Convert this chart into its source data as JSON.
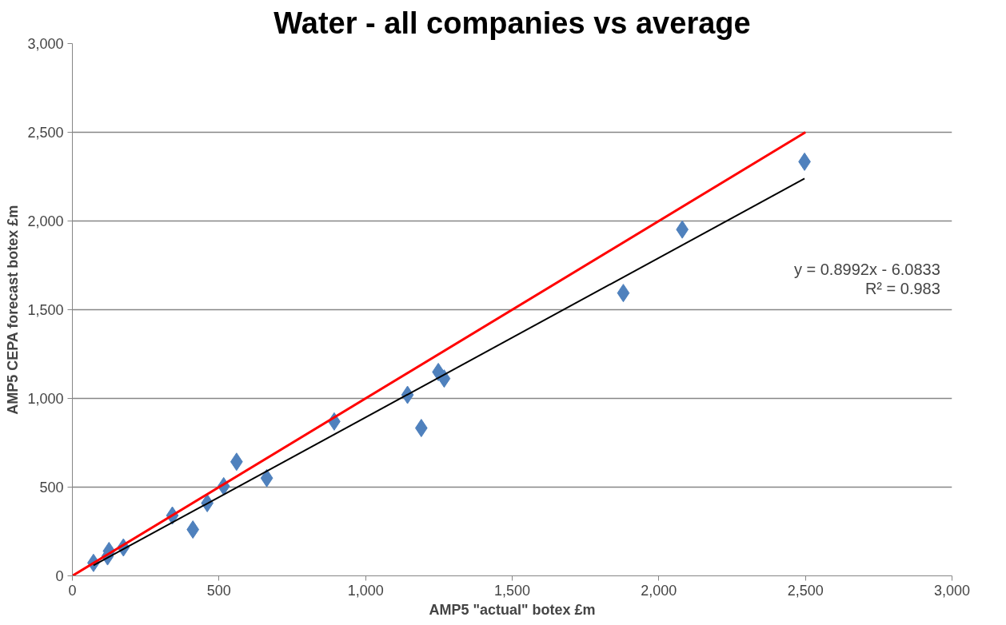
{
  "chart_data": {
    "type": "scatter",
    "title": "Water - all companies vs average",
    "xlabel": "AMP5 \"actual\" botex £m",
    "ylabel": "AMP5 CEPA forecast botex £m",
    "xlim": [
      0,
      3000
    ],
    "ylim": [
      0,
      3000
    ],
    "xticks": [
      {
        "value": 0,
        "label": "0"
      },
      {
        "value": 500,
        "label": "500"
      },
      {
        "value": 1000,
        "label": "1,000"
      },
      {
        "value": 1500,
        "label": "1,500"
      },
      {
        "value": 2000,
        "label": "2,000"
      },
      {
        "value": 2500,
        "label": "2,500"
      },
      {
        "value": 3000,
        "label": "3,000"
      }
    ],
    "yticks": [
      {
        "value": 0,
        "label": "0"
      },
      {
        "value": 500,
        "label": "500"
      },
      {
        "value": 1000,
        "label": "1,000"
      },
      {
        "value": 1500,
        "label": "1,500"
      },
      {
        "value": 2000,
        "label": "2,000"
      },
      {
        "value": 2500,
        "label": "2,500"
      },
      {
        "value": 3000,
        "label": "3,000"
      }
    ],
    "grid": "y",
    "marker": "diamond",
    "series": [
      {
        "color": "#4f81bd",
        "x": [
          72,
          120,
          125,
          174,
          341,
          411,
          460,
          516,
          560,
          663,
          893,
          1143,
          1190,
          1248,
          1268,
          1879,
          2080,
          2497
        ],
        "values": [
          73,
          110,
          140,
          160,
          340,
          261,
          410,
          505,
          643,
          551,
          870,
          1020,
          833,
          1149,
          1112,
          1594,
          1952,
          2334
        ]
      },
      {
        "type": "line",
        "marker": "none",
        "color": "#ff0000",
        "x": [
          0,
          2500
        ],
        "values": [
          0,
          2500
        ]
      },
      {
        "type": "line",
        "marker": "none",
        "color": "#000000",
        "x": [
          72,
          2497
        ],
        "values": [
          59,
          2239
        ]
      }
    ],
    "annotations": [
      "y = 0.8992x - 6.0833",
      "R² = 0.983"
    ]
  }
}
